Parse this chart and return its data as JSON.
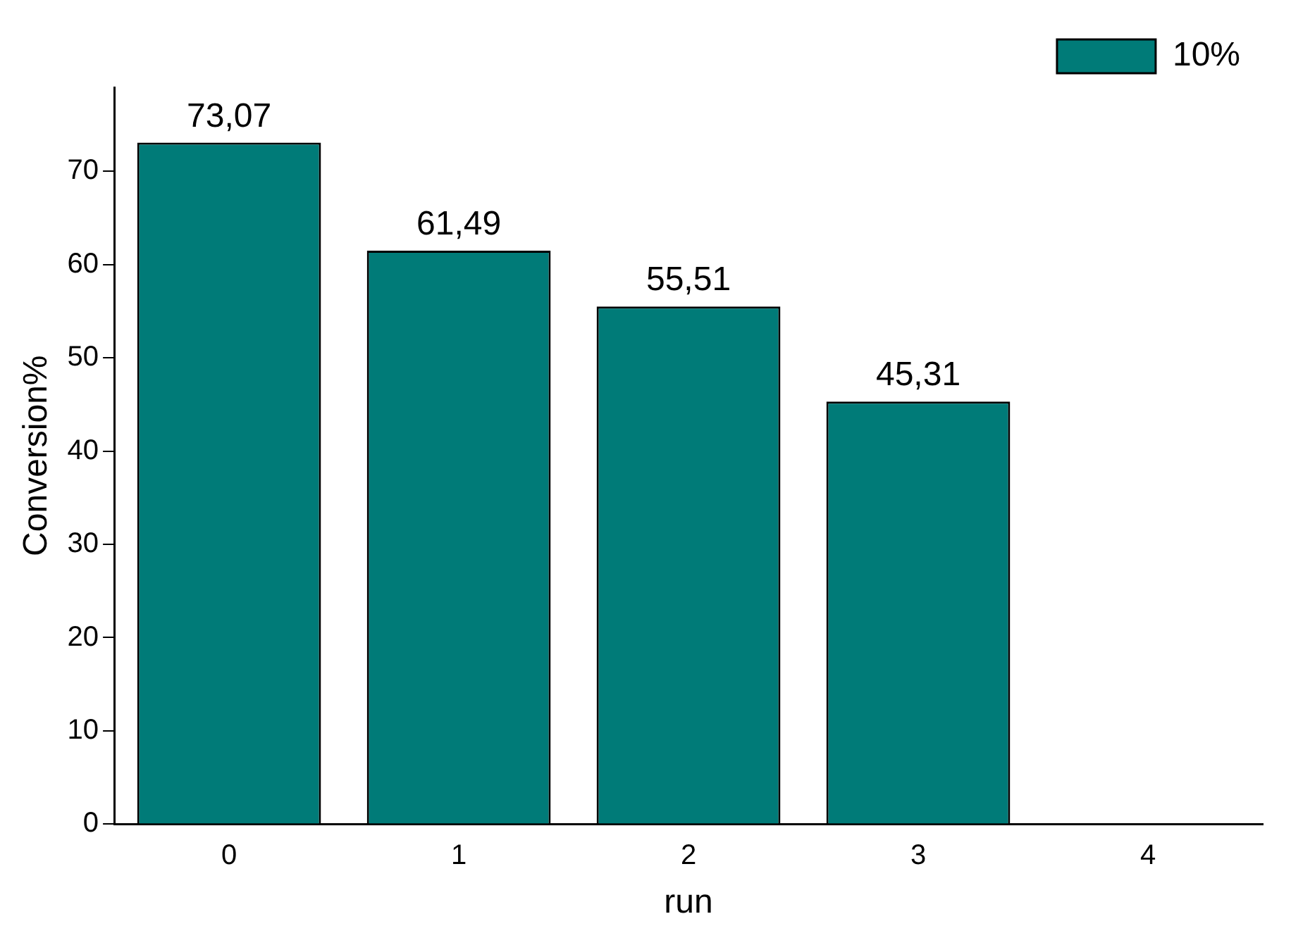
{
  "chart_data": {
    "type": "bar",
    "xlabel": "run",
    "ylabel": "Conversion%",
    "categories": [
      "0",
      "1",
      "2",
      "3",
      "4"
    ],
    "series": [
      {
        "name": "10%",
        "color": "#007b78",
        "values": [
          73.07,
          61.49,
          55.51,
          45.31,
          null
        ],
        "value_labels": [
          "73,07",
          "61,49",
          "55,51",
          "45,31",
          null
        ]
      }
    ],
    "ylim": [
      0,
      79
    ],
    "yticks": [
      0,
      10,
      20,
      30,
      40,
      50,
      60,
      70
    ],
    "grid": false,
    "legend": "top right"
  }
}
